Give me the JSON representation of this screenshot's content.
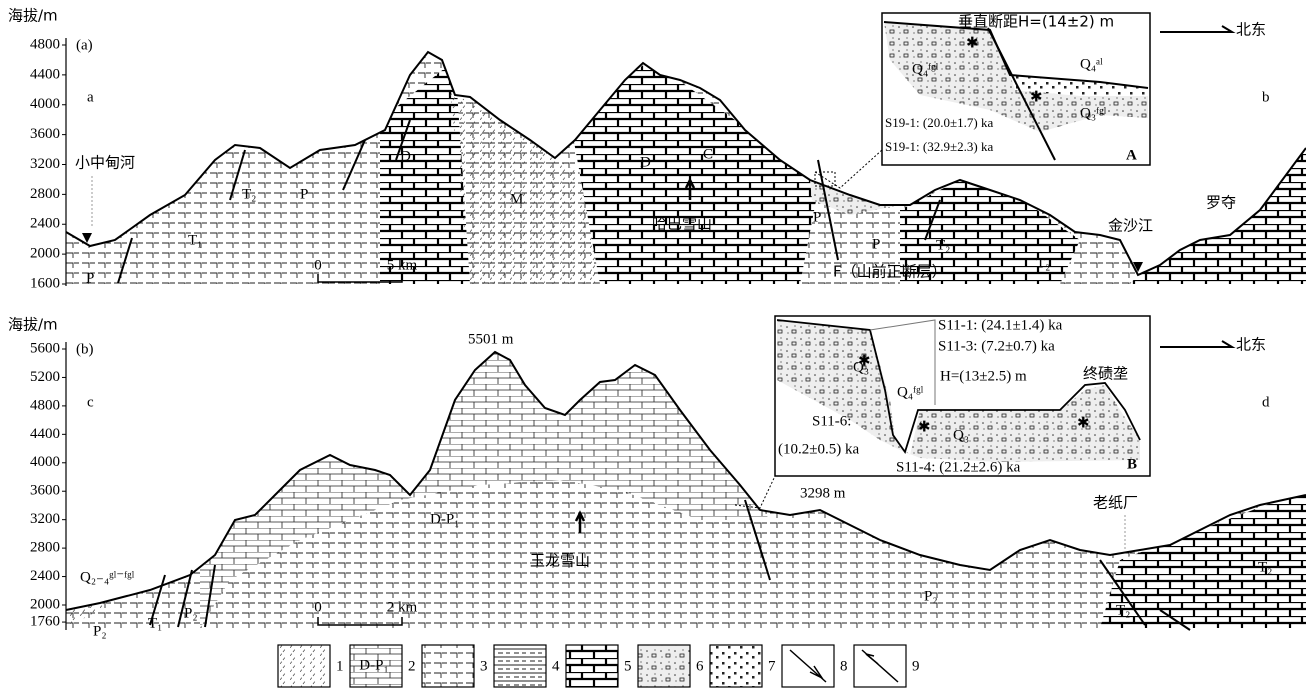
{
  "panel_a": {
    "axis_title": "海拔/m",
    "panel_label": "(a)",
    "corner_left": "a",
    "corner_right": "b",
    "yticks": [
      4800,
      4400,
      4000,
      3600,
      3200,
      2800,
      2400,
      2000,
      1600
    ],
    "labels": [
      "小中甸河",
      "P",
      "T₁",
      "T₂",
      "P",
      "D",
      "M",
      "D",
      "C",
      "哈巴雪山",
      "P",
      "P",
      "T₂",
      "T₂",
      "F（山前正断层）",
      "金沙江",
      "罗夺"
    ],
    "scale_bar": [
      0,
      "5 km"
    ],
    "direction": "北东",
    "inset": {
      "id": "A",
      "labels": [
        "垂直断距H=(14±2) m",
        "Q₄ᶠᵍˡ",
        "Q₄ᵃˡ",
        "Q₃ᶠᵍˡ",
        "S19-1: (20.0±1.7) ka",
        "S19-1: (32.9±2.3) ka"
      ]
    }
  },
  "panel_b": {
    "axis_title": "海拔/m",
    "panel_label": "(b)",
    "corner_left": "c",
    "corner_right": "d",
    "yticks": [
      5600,
      5200,
      4800,
      4400,
      4000,
      3600,
      3200,
      2800,
      2400,
      2000,
      1760
    ],
    "labels": [
      "5501 m",
      "3298 m",
      "D-P₁",
      "玉龙雪山",
      "Q₂₋₄ᵍˡ⁻ᶠᵍˡ",
      "P₂",
      "T₁",
      "P₂",
      "P₂",
      "T₂",
      "T₂",
      "老纸厂"
    ],
    "scale_bar": [
      0,
      "2 km"
    ],
    "direction": "北东",
    "inset": {
      "id": "B",
      "labels": [
        "S11-1: (24.1±1.4) ka",
        "S11-3: (7.2±0.7) ka",
        "H=(13±2.5) m",
        "终碛垄",
        "Q₃",
        "Q₄ᶠᵍˡ",
        "Q₃",
        "S11-6:",
        "(10.2±0.5) ka",
        "S11-4: (21.2±2.6) ka"
      ]
    }
  },
  "legend": {
    "items": [
      "1",
      "2",
      "3",
      "4",
      "5",
      "6",
      "7",
      "8",
      "9"
    ],
    "box_2_text": "D-P₁"
  }
}
